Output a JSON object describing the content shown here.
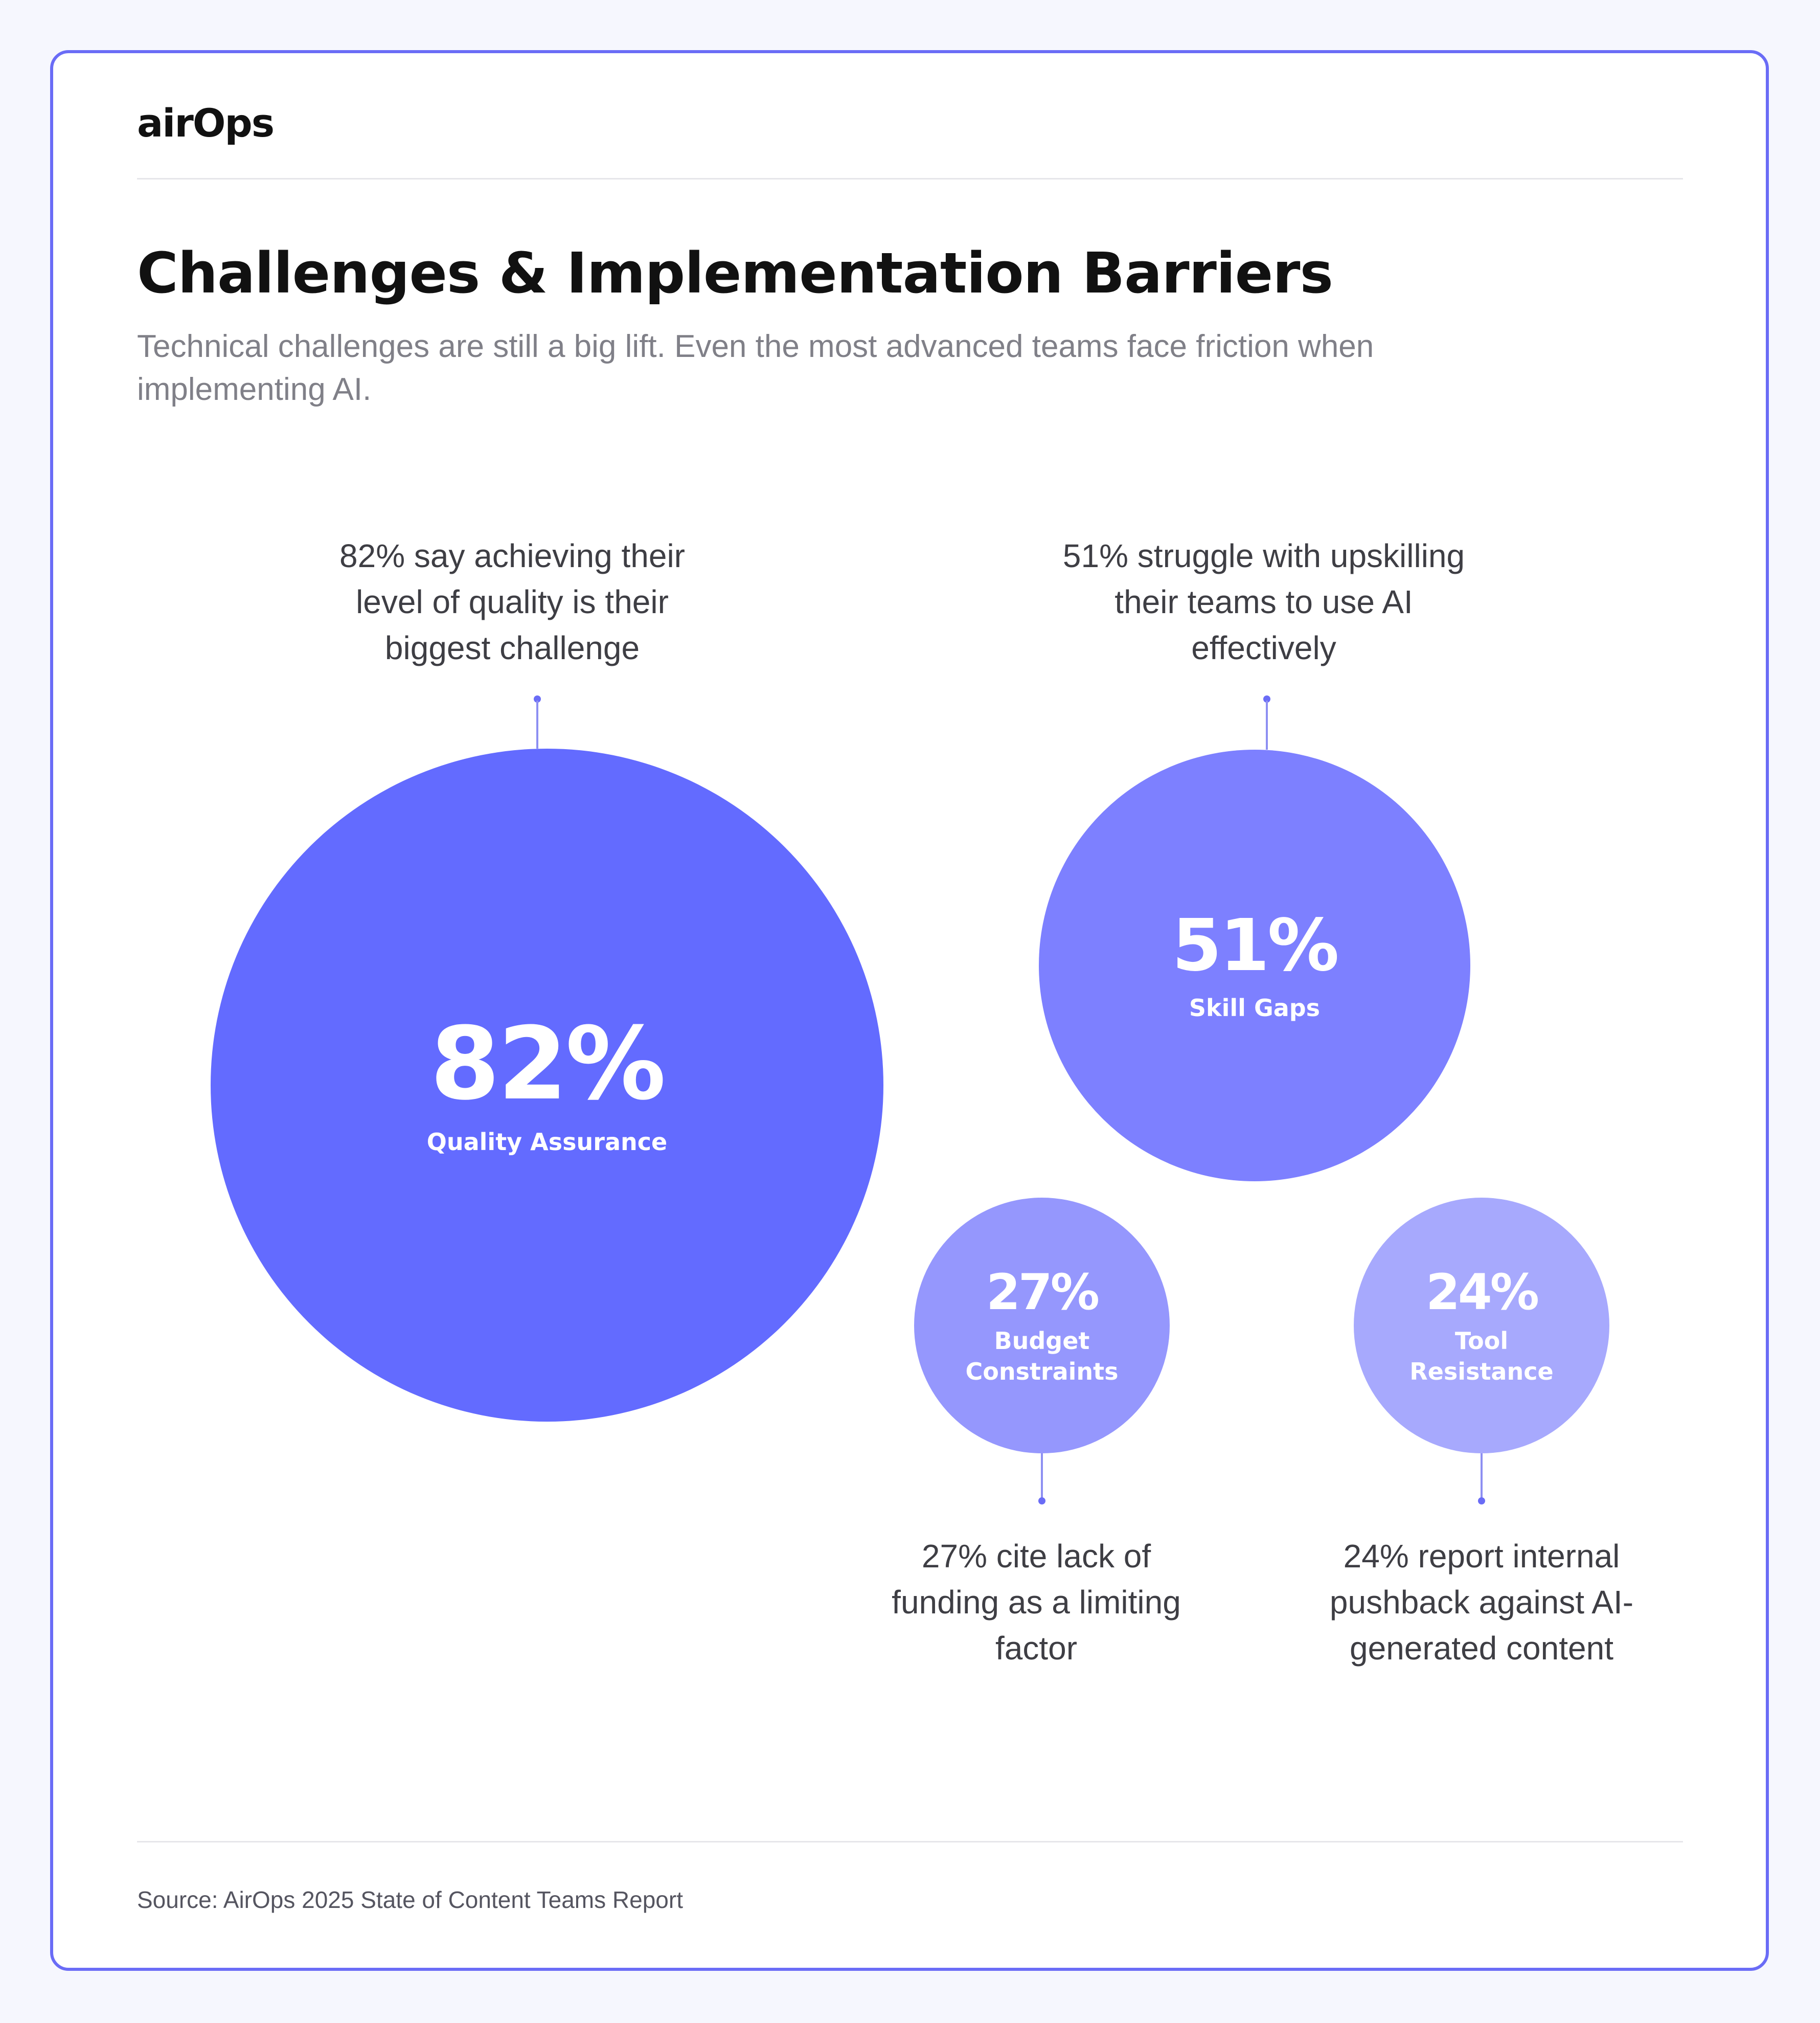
{
  "brand": {
    "logo_text": "airOps"
  },
  "header": {
    "title": "Challenges & Implementation Barriers",
    "subtitle": "Technical challenges are still a big lift. Even the most advanced teams face friction when implementing AI."
  },
  "chart_data": {
    "type": "bubble",
    "title": "Challenges & Implementation Barriers",
    "subtitle": "Technical challenges are still a big lift. Even the most advanced teams face friction when implementing AI.",
    "unit": "%",
    "items": [
      {
        "label": "Quality Assurance",
        "value": 82,
        "display": "82%",
        "color": "#636bff",
        "annotation": "82% say achieving their level of quality is their biggest challenge"
      },
      {
        "label": "Skill Gaps",
        "value": 51,
        "display": "51%",
        "color": "#7d80ff",
        "annotation": "51% struggle with upskilling their teams to use AI effectively"
      },
      {
        "label": "Budget Constraints",
        "value": 27,
        "display": "27%",
        "color": "#9597fd",
        "annotation": "27% cite lack of funding as a limiting factor"
      },
      {
        "label": "Tool Resistance",
        "value": 24,
        "display": "24%",
        "color": "#a7a9fd",
        "annotation": "24% report internal pushback against AI-generated content"
      }
    ]
  },
  "footer": {
    "source": "Source: AirOps 2025 State of Content Teams Report"
  },
  "colors": {
    "accent": "#6a6cf6",
    "background": "#f6f7fe"
  }
}
